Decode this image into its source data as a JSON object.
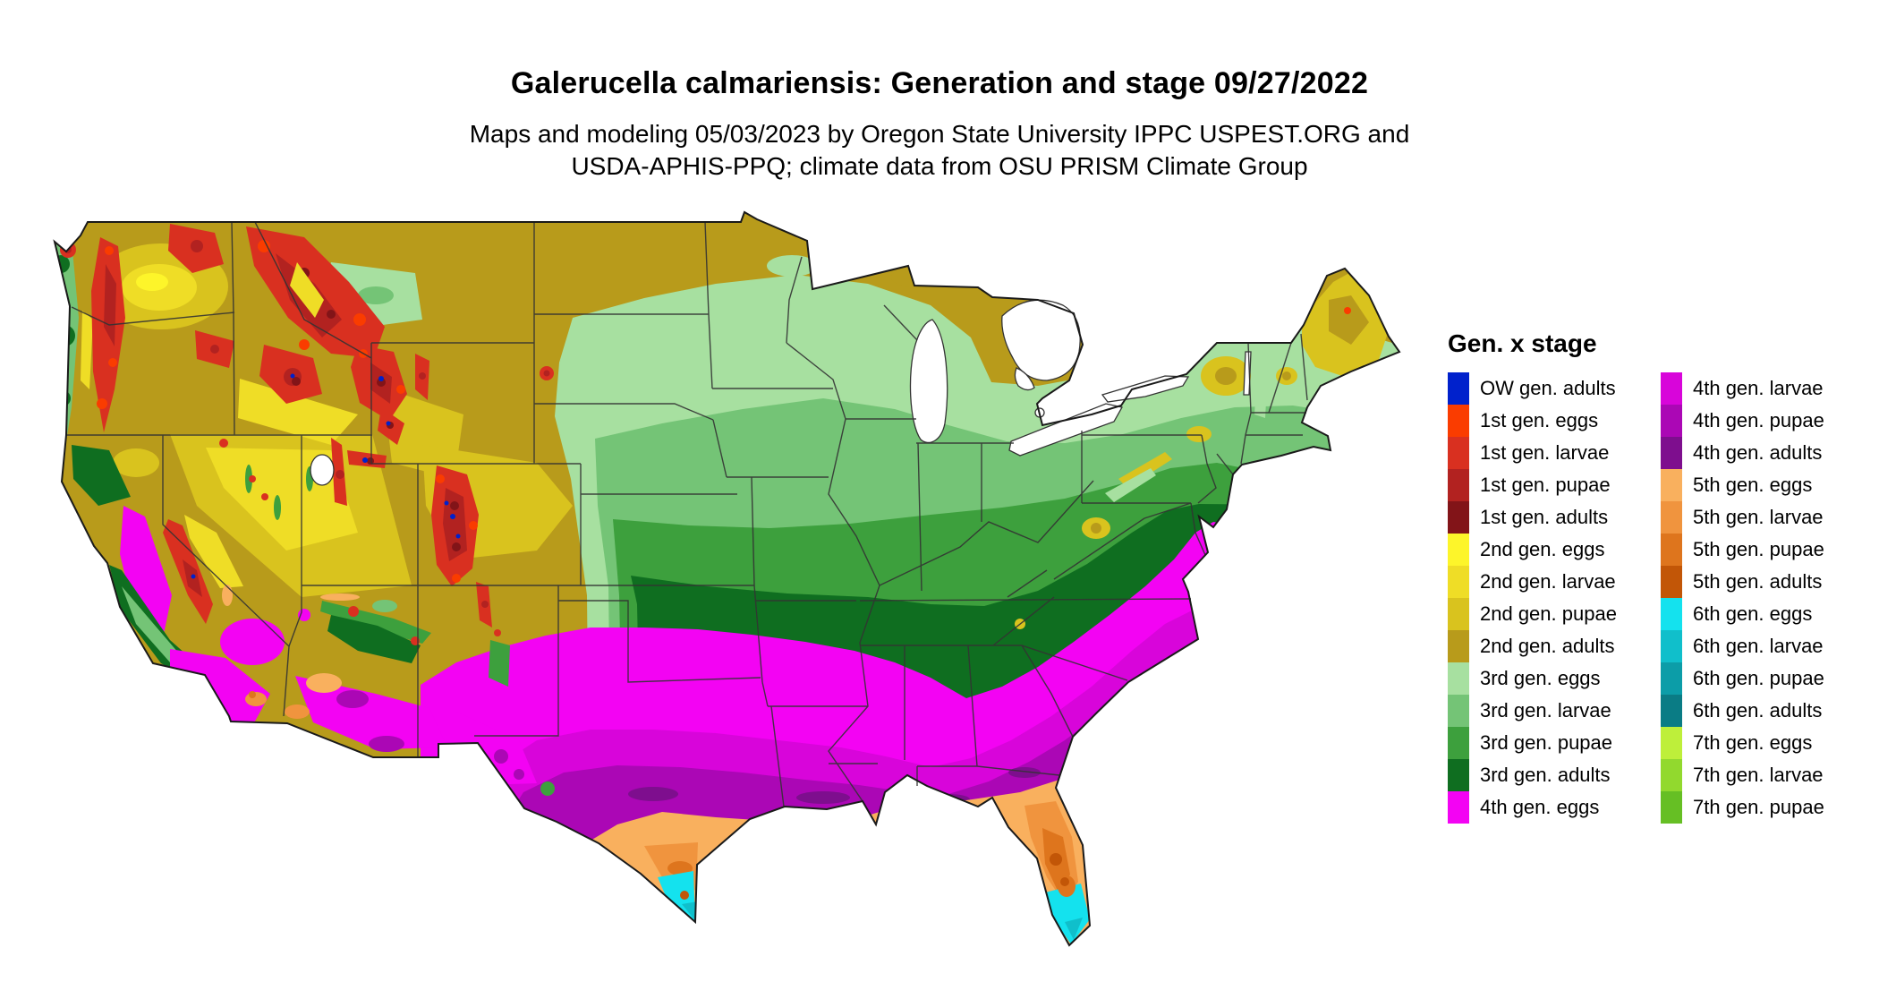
{
  "header": {
    "title": "Galerucella calmariensis: Generation and stage 09/27/2022",
    "subtitle_line1": "Maps and modeling 05/03/2023 by Oregon State University IPPC USPEST.ORG and",
    "subtitle_line2": "USDA-APHIS-PPQ; climate data from OSU PRISM Climate Group"
  },
  "legend": {
    "title": "Gen. x stage",
    "columns": [
      [
        {
          "key": "ow_adults",
          "label": "OW gen. adults"
        },
        {
          "key": "g1_eggs",
          "label": "1st gen. eggs"
        },
        {
          "key": "g1_larvae",
          "label": "1st gen. larvae"
        },
        {
          "key": "g1_pupae",
          "label": "1st gen. pupae"
        },
        {
          "key": "g1_adults",
          "label": "1st gen. adults"
        },
        {
          "key": "g2_eggs",
          "label": "2nd gen. eggs"
        },
        {
          "key": "g2_larvae",
          "label": "2nd gen. larvae"
        },
        {
          "key": "g2_pupae",
          "label": "2nd gen. pupae"
        },
        {
          "key": "g2_adults",
          "label": "2nd gen. adults"
        },
        {
          "key": "g3_eggs",
          "label": "3rd gen. eggs"
        },
        {
          "key": "g3_larvae",
          "label": "3rd gen. larvae"
        },
        {
          "key": "g3_pupae",
          "label": "3rd gen. pupae"
        },
        {
          "key": "g3_adults",
          "label": "3rd gen. adults"
        },
        {
          "key": "g4_eggs",
          "label": "4th gen. eggs"
        }
      ],
      [
        {
          "key": "g4_larvae",
          "label": "4th gen. larvae"
        },
        {
          "key": "g4_pupae",
          "label": "4th gen. pupae"
        },
        {
          "key": "g4_adults",
          "label": "4th gen. adults"
        },
        {
          "key": "g5_eggs",
          "label": "5th gen. eggs"
        },
        {
          "key": "g5_larvae",
          "label": "5th gen. larvae"
        },
        {
          "key": "g5_pupae",
          "label": "5th gen. pupae"
        },
        {
          "key": "g5_adults",
          "label": "5th gen. adults"
        },
        {
          "key": "g6_eggs",
          "label": "6th gen. eggs"
        },
        {
          "key": "g6_larvae",
          "label": "6th gen. larvae"
        },
        {
          "key": "g6_pupae",
          "label": "6th gen. pupae"
        },
        {
          "key": "g6_adults",
          "label": "6th gen. adults"
        },
        {
          "key": "g7_eggs",
          "label": "7th gen. eggs"
        },
        {
          "key": "g7_larvae",
          "label": "7th gen. larvae"
        },
        {
          "key": "g7_pupae",
          "label": "7th gen. pupae"
        }
      ]
    ]
  },
  "palette": {
    "ow_adults": "#0021CC",
    "g1_eggs": "#FA3C00",
    "g1_larvae": "#D93020",
    "g1_pupae": "#B22220",
    "g1_adults": "#821418",
    "g2_eggs": "#FDF52A",
    "g2_larvae": "#EFDD26",
    "g2_pupae": "#D9C31E",
    "g2_adults": "#B89B1B",
    "g3_eggs": "#A7E0A0",
    "g3_larvae": "#74C476",
    "g3_pupae": "#3DA03D",
    "g3_adults": "#0F6E20",
    "g4_eggs": "#F303F3",
    "g4_larvae": "#D805DA",
    "g4_pupae": "#AB07B5",
    "g4_adults": "#7E0E8E",
    "g5_eggs": "#F9B05E",
    "g5_larvae": "#F0943E",
    "g5_pupae": "#DE751D",
    "g5_adults": "#C25607",
    "g6_eggs": "#14E2EE",
    "g6_larvae": "#10BFCB",
    "g6_pupae": "#0C9DA8",
    "g6_adults": "#0A7C85",
    "g7_eggs": "#BEEF3A",
    "g7_larvae": "#92D92E",
    "g7_pupae": "#66BF24",
    "water": "#FFFFFF",
    "border_line": "#333333",
    "outline": "#1A1A1A"
  }
}
